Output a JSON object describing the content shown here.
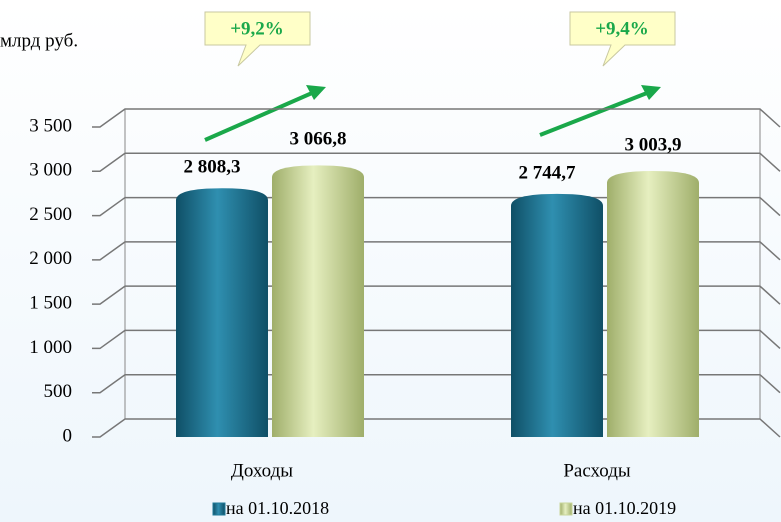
{
  "chart_data": {
    "type": "bar",
    "unit": "млрд руб.",
    "categories": [
      "Доходы",
      "Расходы"
    ],
    "series": [
      {
        "name": "на 01.10.2018",
        "color": "#1f7a99",
        "values": [
          2808.3,
          2744.7
        ],
        "value_labels": [
          "2 808,3",
          "2 744,7"
        ]
      },
      {
        "name": "на 01.10.2019",
        "color": "#c9d69a",
        "values": [
          3066.8,
          3003.9
        ],
        "value_labels": [
          "3 066,8",
          "3 003,9"
        ]
      }
    ],
    "annotations": [
      "+9,2%",
      "+9,4%"
    ],
    "ylim": [
      0,
      3500
    ],
    "yticks": [
      0,
      500,
      {
        "value": 1000,
        "label": "1 000"
      },
      {
        "value": 1500,
        "label": "1 500"
      },
      {
        "value": 2000,
        "label": "2 000"
      },
      {
        "value": 2500,
        "label": "2 500"
      },
      {
        "value": 3000,
        "label": "3 000"
      },
      {
        "value": 3500,
        "label": "3 500"
      }
    ],
    "grid": true
  }
}
